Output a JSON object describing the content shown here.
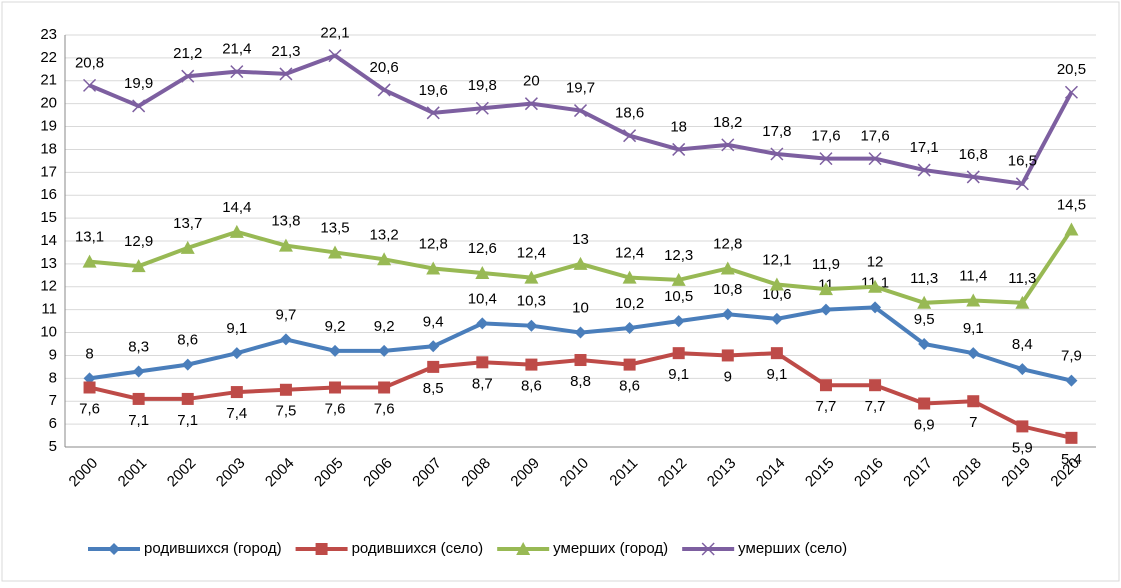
{
  "chart_data": {
    "type": "line",
    "categories": [
      "2000",
      "2001",
      "2002",
      "2003",
      "2004",
      "2005",
      "2006",
      "2007",
      "2008",
      "2009",
      "2010",
      "2011",
      "2012",
      "2013",
      "2014",
      "2015",
      "2016",
      "2017",
      "2018",
      "2019",
      "2020"
    ],
    "ylim": [
      5,
      23
    ],
    "yticks": [
      5,
      6,
      7,
      8,
      9,
      10,
      11,
      12,
      13,
      14,
      15,
      16,
      17,
      18,
      19,
      20,
      21,
      22,
      23
    ],
    "grid": true,
    "legend": "bottom",
    "series": [
      {
        "name": "родившихся (город)",
        "color": "#4a7ebb",
        "marker": "diamond",
        "values": [
          8,
          8.3,
          8.6,
          9.1,
          9.7,
          9.2,
          9.2,
          9.4,
          10.4,
          10.3,
          10,
          10.2,
          10.5,
          10.8,
          10.6,
          11,
          11.1,
          9.5,
          9.1,
          8.4,
          7.9
        ],
        "value_labels": [
          "8",
          "8,3",
          "8,6",
          "9,1",
          "9,7",
          "9,2",
          "9,2",
          "9,4",
          "10,4",
          "10,3",
          "10",
          "10,2",
          "10,5",
          "10,8",
          "10,6",
          "11",
          "11,1",
          "9,5",
          "9,1",
          "8,4",
          "7,9"
        ]
      },
      {
        "name": "родившихся (село)",
        "color": "#be4b48",
        "marker": "square",
        "values": [
          7.6,
          7.1,
          7.1,
          7.4,
          7.5,
          7.6,
          7.6,
          8.5,
          8.7,
          8.6,
          8.8,
          8.6,
          9.1,
          9,
          9.1,
          7.7,
          7.7,
          6.9,
          7,
          5.9,
          5.4
        ],
        "value_labels": [
          "7,6",
          "7,1",
          "7,1",
          "7,4",
          "7,5",
          "7,6",
          "7,6",
          "8,5",
          "8,7",
          "8,6",
          "8,8",
          "8,6",
          "9,1",
          "9",
          "9,1",
          "7,7",
          "7,7",
          "6,9",
          "7",
          "5,9",
          "5,4"
        ]
      },
      {
        "name": "умерших (город)",
        "color": "#98b954",
        "marker": "triangle",
        "values": [
          13.1,
          12.9,
          13.7,
          14.4,
          13.8,
          13.5,
          13.2,
          12.8,
          12.6,
          12.4,
          13,
          12.4,
          12.3,
          12.8,
          12.1,
          11.9,
          12,
          11.3,
          11.4,
          11.3,
          14.5
        ],
        "value_labels": [
          "13,1",
          "12,9",
          "13,7",
          "14,4",
          "13,8",
          "13,5",
          "13,2",
          "12,8",
          "12,6",
          "12,4",
          "13",
          "12,4",
          "12,3",
          "12,8",
          "12,1",
          "11,9",
          "12",
          "11,3",
          "11,4",
          "11,3",
          "14,5"
        ]
      },
      {
        "name": "умерших (село)",
        "color": "#7d5fa0",
        "marker": "x",
        "values": [
          20.8,
          19.9,
          21.2,
          21.4,
          21.3,
          22.1,
          20.6,
          19.6,
          19.8,
          20,
          19.7,
          18.6,
          18,
          18.2,
          17.8,
          17.6,
          17.6,
          17.1,
          16.8,
          16.5,
          20.5
        ],
        "value_labels": [
          "20,8",
          "19,9",
          "21,2",
          "21,4",
          "21,3",
          "22,1",
          "20,6",
          "19,6",
          "19,8",
          "20",
          "19,7",
          "18,6",
          "18",
          "18,2",
          "17,8",
          "17,6",
          "17,6",
          "17,1",
          "16,8",
          "16,5",
          "20,5"
        ]
      }
    ]
  }
}
